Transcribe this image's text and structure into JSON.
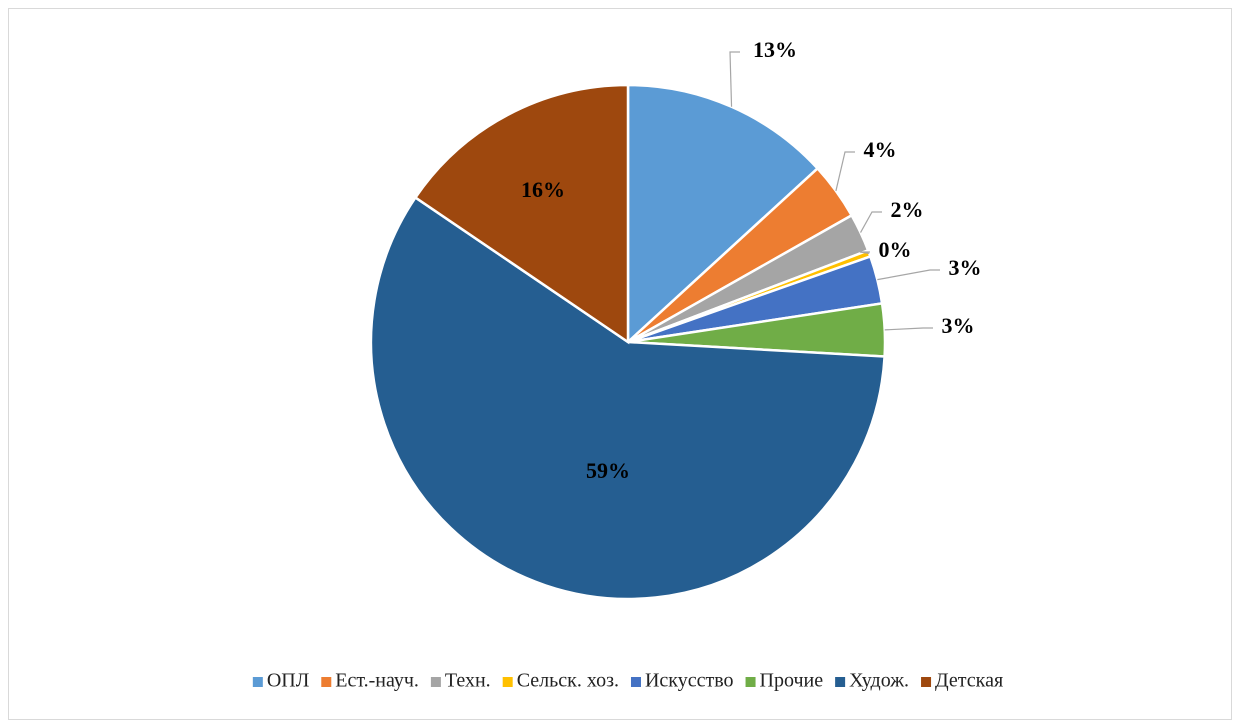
{
  "chart_data": {
    "type": "pie",
    "categories": [
      "ОПЛ",
      "Ест.-науч.",
      "Техн.",
      "Сельск. хоз.",
      "Искусство",
      "Прочие",
      "Худож.",
      "Детская"
    ],
    "values": [
      13.2,
      3.6,
      2.4,
      0.4,
      3.0,
      3.3,
      58.6,
      15.5
    ],
    "value_labels": [
      "13%",
      "4%",
      "2%",
      "0%",
      "3%",
      "3%",
      "59%",
      "16%"
    ],
    "colors": [
      "#5b9bd5",
      "#ed7d31",
      "#a5a5a5",
      "#ffc000",
      "#4472c4",
      "#70ad47",
      "#255e91",
      "#9e480e"
    ],
    "legend": "bottom"
  }
}
